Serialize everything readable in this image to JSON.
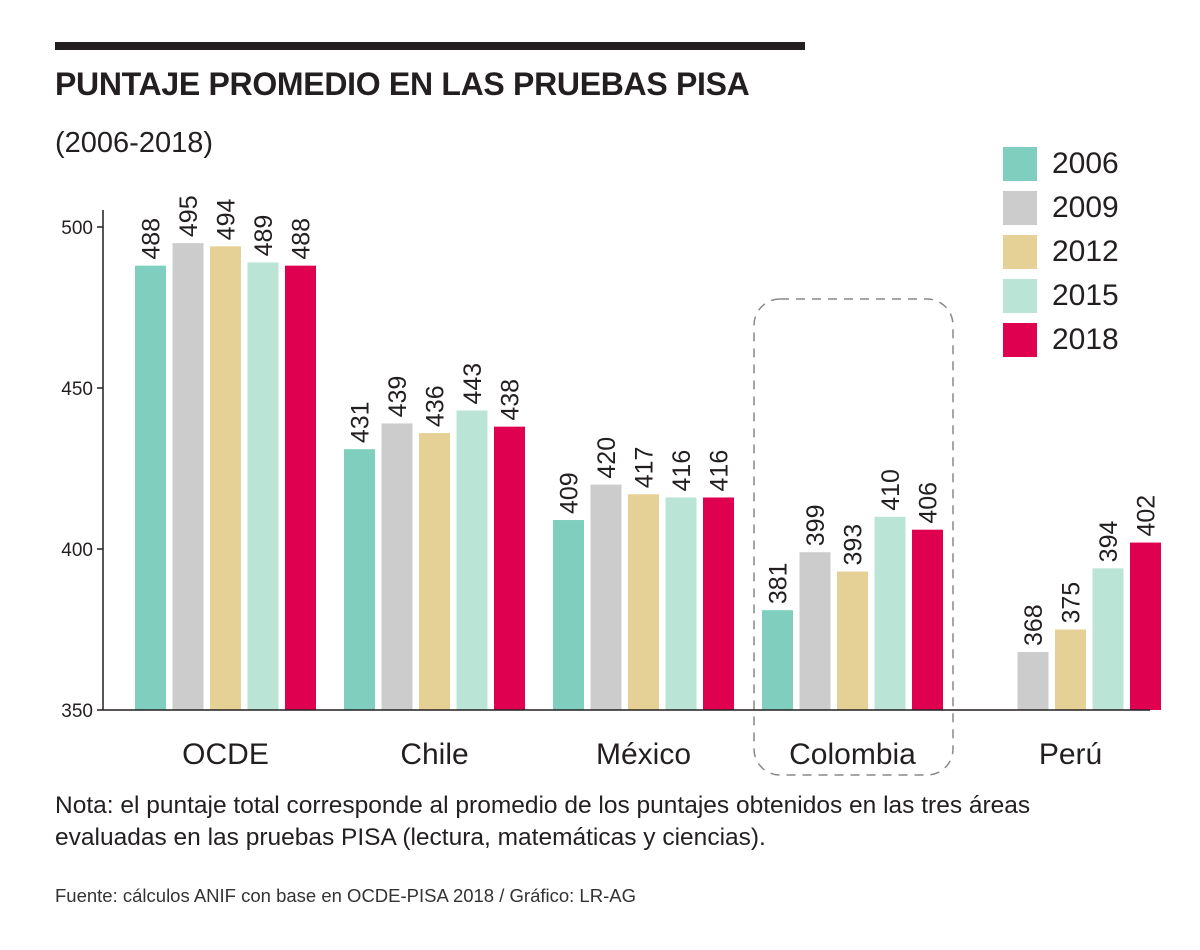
{
  "title": "PUNTAJE PROMEDIO EN LAS PRUEBAS PISA",
  "subtitle": "(2006-2018)",
  "note": "Nota: el puntaje total corresponde al promedio de los puntajes obtenidos en las tres áreas evaluadas en las pruebas PISA (lectura, matemáticas y ciencias).",
  "source": "Fuente: cálculos ANIF con base en OCDE-PISA 2018 / Gráfico: LR-AG",
  "colors": {
    "2006": "#80cfbe",
    "2009": "#cccccc",
    "2012": "#e5d096",
    "2015": "#b9e4d6",
    "2018": "#df0050",
    "text": "#231f20",
    "axis": "#231f20",
    "highlight_border": "#888888"
  },
  "legend": [
    {
      "label": "2006",
      "color": "#80cfbe"
    },
    {
      "label": "2009",
      "color": "#cccccc"
    },
    {
      "label": "2012",
      "color": "#e5d096"
    },
    {
      "label": "2015",
      "color": "#b9e4d6"
    },
    {
      "label": "2018",
      "color": "#df0050"
    }
  ],
  "chart_data": {
    "type": "bar",
    "title": "PUNTAJE PROMEDIO EN LAS PRUEBAS PISA",
    "subtitle": "(2006-2018)",
    "xlabel": "",
    "ylabel": "",
    "ylim": [
      350,
      500
    ],
    "yticks": [
      350,
      400,
      450,
      500
    ],
    "grid": false,
    "legend_position": "top-right",
    "highlighted_category": "Colombia",
    "categories": [
      "OCDE",
      "Chile",
      "México",
      "Colombia",
      "Perú"
    ],
    "series": [
      {
        "name": "2006",
        "values": [
          488,
          431,
          409,
          381,
          null
        ]
      },
      {
        "name": "2009",
        "values": [
          495,
          439,
          420,
          399,
          368
        ]
      },
      {
        "name": "2012",
        "values": [
          494,
          436,
          417,
          393,
          375
        ]
      },
      {
        "name": "2015",
        "values": [
          489,
          443,
          416,
          410,
          394
        ]
      },
      {
        "name": "2018",
        "values": [
          488,
          438,
          416,
          406,
          402
        ]
      }
    ]
  }
}
